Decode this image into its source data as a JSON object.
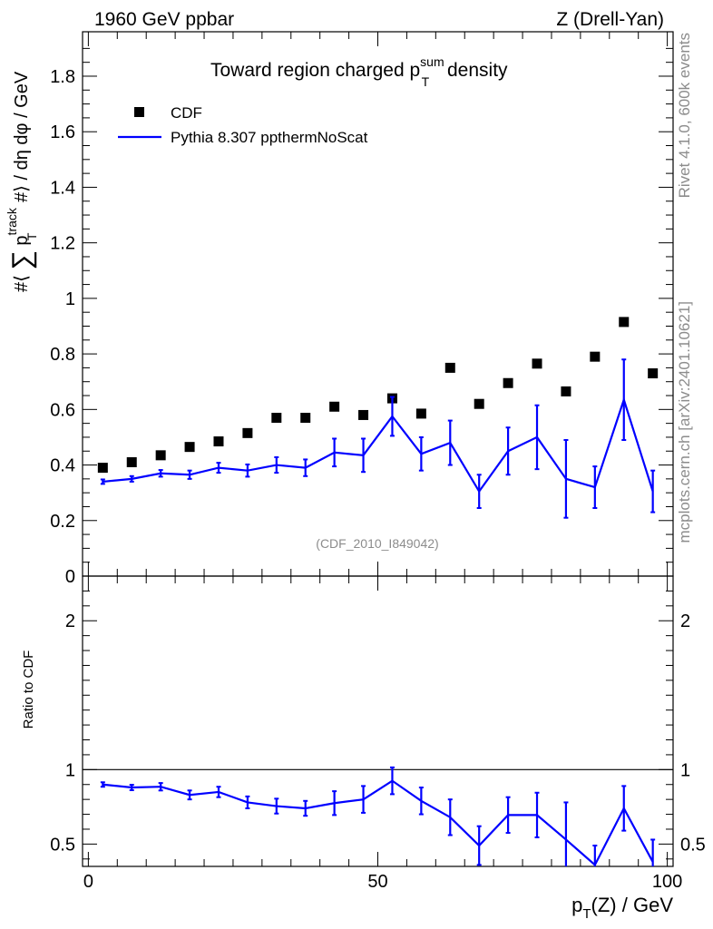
{
  "header": {
    "left_label": "1960 GeV ppbar",
    "right_label": "Z (Drell-Yan)"
  },
  "side_labels": {
    "rivet": "Rivet 4.1.0,  600k events",
    "mcplots": "mcplots.cern.ch [arXiv:2401.10621]"
  },
  "chart_data": {
    "type": "scatter",
    "title": {
      "main": "Toward region charged p",
      "sup": "sum",
      "sub": "T",
      "tail": " density"
    },
    "watermark": "(CDF_2010_I849042)",
    "xlabel": "p_T(Z) / GeV",
    "xlabel_parts": {
      "p": "p",
      "sub": "T",
      "rest": "(Z) / GeV"
    },
    "ylabel": "#⟨ ∑ p_T^track #⟩ / dη dφ / GeV",
    "ylabel_parts": {
      "pre": "#⟨ ",
      "sum": "∑",
      "p": " p",
      "sup": "track",
      "sub": "T",
      "post": " #⟩ / dη dφ / GeV"
    },
    "xlim": [
      -1,
      101
    ],
    "ylim": [
      0,
      1.96
    ],
    "x_ticks": [
      "0",
      "50",
      "100"
    ],
    "y_ticks": [
      "0",
      "0.2",
      "0.4",
      "0.6",
      "0.8",
      "1",
      "1.2",
      "1.4",
      "1.6",
      "1.8"
    ],
    "legend": {
      "position": "top-left",
      "cdf_label": "CDF",
      "pythia_label": "Pythia 8.307 ppthermNoScat"
    },
    "x": [
      2.5,
      7.5,
      12.5,
      17.5,
      22.5,
      27.5,
      32.5,
      37.5,
      42.5,
      47.5,
      52.5,
      57.5,
      62.5,
      67.5,
      72.5,
      77.5,
      82.5,
      87.5,
      92.5,
      97.5
    ],
    "series": [
      {
        "name": "CDF",
        "color": "#000000",
        "values": [
          0.39,
          0.41,
          0.435,
          0.465,
          0.485,
          0.515,
          0.57,
          0.57,
          0.61,
          0.58,
          0.64,
          0.585,
          0.75,
          0.62,
          0.695,
          0.765,
          0.665,
          0.79,
          0.915,
          0.73
        ]
      },
      {
        "name": "Pythia 8.307 ppthermNoScat",
        "color": "#0000ff",
        "values": [
          0.34,
          0.35,
          0.37,
          0.365,
          0.39,
          0.38,
          0.4,
          0.39,
          0.445,
          0.435,
          0.575,
          0.44,
          0.48,
          0.305,
          0.45,
          0.5,
          0.35,
          0.32,
          0.635,
          0.305
        ],
        "err_up": [
          0.008,
          0.01,
          0.012,
          0.015,
          0.018,
          0.022,
          0.028,
          0.03,
          0.05,
          0.06,
          0.07,
          0.06,
          0.08,
          0.06,
          0.085,
          0.115,
          0.14,
          0.075,
          0.145,
          0.075
        ],
        "err_down": [
          0.008,
          0.01,
          0.012,
          0.015,
          0.018,
          0.022,
          0.028,
          0.03,
          0.05,
          0.06,
          0.07,
          0.06,
          0.08,
          0.06,
          0.085,
          0.115,
          0.14,
          0.075,
          0.145,
          0.075
        ]
      }
    ],
    "ratio": {
      "ylabel": "Ratio to CDF",
      "ylim": [
        0.35,
        2.3
      ],
      "y_ticks": [
        "0.5",
        "1",
        "2"
      ],
      "values": [
        0.9,
        0.88,
        0.885,
        0.83,
        0.85,
        0.78,
        0.755,
        0.74,
        0.775,
        0.8,
        0.925,
        0.79,
        0.68,
        0.49,
        0.695,
        0.695,
        0.53,
        0.36,
        0.74,
        0.38
      ],
      "err_up": [
        0.015,
        0.018,
        0.025,
        0.03,
        0.035,
        0.04,
        0.05,
        0.05,
        0.08,
        0.09,
        0.09,
        0.09,
        0.12,
        0.13,
        0.12,
        0.15,
        0.25,
        0.13,
        0.15,
        0.15
      ],
      "err_down": [
        0.015,
        0.018,
        0.025,
        0.03,
        0.035,
        0.04,
        0.05,
        0.05,
        0.08,
        0.09,
        0.09,
        0.09,
        0.12,
        0.13,
        0.12,
        0.15,
        0.25,
        0.13,
        0.15,
        0.15
      ]
    }
  }
}
